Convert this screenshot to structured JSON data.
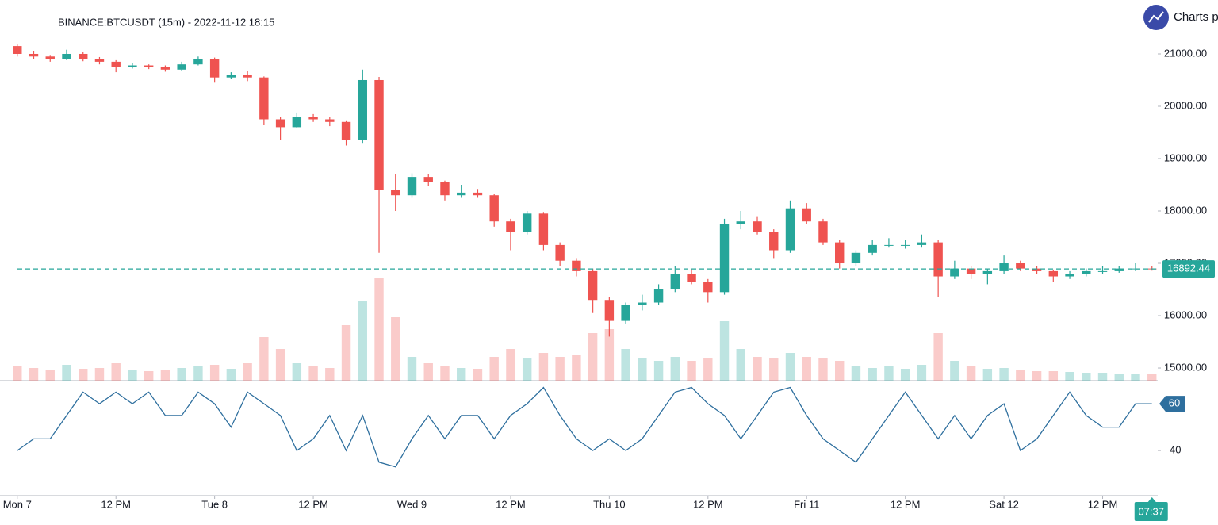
{
  "chart_data": {
    "type": "candlestick",
    "title": "BINANCE:BTCUSDT (15m) - 2022-11-12 18:15",
    "brand": "Charts p",
    "countdown": "07:37",
    "up_color": "#26a69a",
    "down_color": "#ef5350",
    "x": [
      0,
      2,
      4,
      6,
      8,
      10,
      12,
      14,
      16,
      18,
      20,
      22,
      24,
      26,
      28,
      30,
      32,
      34,
      36,
      38,
      40,
      42,
      44,
      46,
      48,
      50,
      52,
      54,
      56,
      58,
      60,
      62,
      64,
      66,
      68,
      70,
      72,
      74,
      76,
      78,
      80,
      82,
      84,
      86,
      88,
      90,
      92,
      94,
      96,
      98,
      100,
      102,
      104,
      106,
      108,
      110,
      112,
      114,
      116,
      118,
      120,
      122,
      124,
      126,
      128,
      130,
      132,
      134,
      136,
      138
    ],
    "open": [
      21150,
      21000,
      20950,
      20900,
      21000,
      20900,
      20850,
      20750,
      20780,
      20750,
      20700,
      20800,
      20900,
      20550,
      20600,
      20550,
      19750,
      19600,
      19800,
      19750,
      19700,
      19350,
      20500,
      18400,
      18300,
      18650,
      18550,
      18300,
      18350,
      18300,
      17800,
      17600,
      17950,
      17350,
      17050,
      16850,
      16300,
      15900,
      16200,
      16250,
      16500,
      16800,
      16650,
      16450,
      17750,
      17800,
      17600,
      17250,
      18050,
      17800,
      17400,
      17000,
      17200,
      17350,
      17350,
      17350,
      17400,
      16750,
      16900,
      16800,
      16850,
      17000,
      16900,
      16850,
      16750,
      16800,
      16850,
      16850,
      16900,
      16900
    ],
    "high": [
      21180,
      21060,
      20980,
      21080,
      21030,
      20940,
      20880,
      20820,
      20800,
      20780,
      20850,
      20950,
      20930,
      20650,
      20680,
      20570,
      19800,
      19880,
      19850,
      19790,
      19730,
      20700,
      20560,
      18700,
      18720,
      18700,
      18580,
      18500,
      18420,
      18330,
      17850,
      18000,
      17980,
      17400,
      17100,
      16900,
      16350,
      16250,
      16400,
      16600,
      16950,
      16900,
      16700,
      17850,
      18000,
      17900,
      17650,
      18200,
      18150,
      17850,
      17450,
      17250,
      17450,
      17480,
      17450,
      17550,
      17450,
      17050,
      16950,
      16900,
      17150,
      17050,
      16950,
      16880,
      16850,
      16900,
      16950,
      16950,
      17000,
      16950
    ],
    "low": [
      20950,
      20900,
      20850,
      20880,
      20860,
      20800,
      20650,
      20720,
      20710,
      20660,
      20680,
      20780,
      20450,
      20520,
      20480,
      19650,
      19350,
      19580,
      19700,
      19620,
      19250,
      19300,
      17200,
      18000,
      18250,
      18480,
      18200,
      18250,
      18250,
      17700,
      17250,
      17550,
      17250,
      16950,
      16750,
      16050,
      15600,
      15850,
      16100,
      16200,
      16450,
      16600,
      16250,
      16400,
      17650,
      17550,
      17100,
      17200,
      17750,
      17350,
      16900,
      16950,
      17150,
      17300,
      17280,
      17300,
      16350,
      16700,
      16700,
      16600,
      16800,
      16850,
      16800,
      16650,
      16700,
      16750,
      16800,
      16820,
      16850,
      16860
    ],
    "close": [
      21000,
      20950,
      20900,
      21000,
      20900,
      20850,
      20750,
      20780,
      20750,
      20700,
      20800,
      20900,
      20550,
      20600,
      20550,
      19750,
      19600,
      19800,
      19750,
      19700,
      19350,
      20500,
      18400,
      18300,
      18650,
      18550,
      18300,
      18350,
      18300,
      17800,
      17600,
      17950,
      17350,
      17050,
      16850,
      16300,
      15900,
      16200,
      16250,
      16500,
      16800,
      16650,
      16450,
      17750,
      17800,
      17600,
      17250,
      18050,
      17800,
      17400,
      17000,
      17200,
      17350,
      17350,
      17350,
      17400,
      16750,
      16900,
      16800,
      16850,
      17000,
      16900,
      16850,
      16750,
      16800,
      16850,
      16850,
      16900,
      16900,
      16892.44
    ],
    "volume": [
      18,
      16,
      14,
      20,
      15,
      16,
      22,
      14,
      12,
      14,
      16,
      18,
      20,
      15,
      22,
      55,
      40,
      22,
      18,
      16,
      70,
      100,
      130,
      80,
      30,
      22,
      18,
      16,
      15,
      30,
      40,
      28,
      35,
      30,
      32,
      60,
      65,
      40,
      28,
      25,
      30,
      25,
      28,
      75,
      40,
      30,
      28,
      35,
      30,
      28,
      25,
      18,
      16,
      18,
      15,
      20,
      60,
      25,
      18,
      15,
      16,
      14,
      12,
      12,
      11,
      10,
      10,
      9,
      9,
      8
    ],
    "xlim": [
      -2.1,
      138.7
    ],
    "xticks": [
      {
        "value": 0,
        "label": "Mon 7"
      },
      {
        "value": 12,
        "label": "12 PM"
      },
      {
        "value": 24,
        "label": "Tue 8"
      },
      {
        "value": 36,
        "label": "12 PM"
      },
      {
        "value": 48,
        "label": "Wed 9"
      },
      {
        "value": 60,
        "label": "12 PM"
      },
      {
        "value": 72,
        "label": "Thu 10"
      },
      {
        "value": 84,
        "label": "12 PM"
      },
      {
        "value": 96,
        "label": "Fri 11"
      },
      {
        "value": 108,
        "label": "12 PM"
      },
      {
        "value": 120,
        "label": "Sat 12"
      },
      {
        "value": 132,
        "label": "12 PM"
      }
    ],
    "ylim": [
      14758,
      22030
    ],
    "yticks": [
      {
        "value": 15000,
        "label": "15000.00"
      },
      {
        "value": 16000,
        "label": "16000.00"
      },
      {
        "value": 17000,
        "label": "17000.00"
      },
      {
        "value": 18000,
        "label": "18000.00"
      },
      {
        "value": 19000,
        "label": "19000.00"
      },
      {
        "value": 20000,
        "label": "20000.00"
      },
      {
        "value": 21000,
        "label": "21000.00"
      }
    ],
    "indicator": {
      "color": "#2e6f9e",
      "ylim": [
        20.7,
        69.2
      ],
      "yticks": [
        40
      ],
      "values": [
        40,
        45,
        45,
        55,
        65,
        60,
        65,
        60,
        65,
        55,
        55,
        65,
        60,
        50,
        65,
        60,
        55,
        40,
        45,
        55,
        40,
        55,
        35,
        33,
        45,
        55,
        45,
        55,
        55,
        45,
        55,
        60,
        67,
        55,
        45,
        40,
        45,
        40,
        45,
        55,
        65,
        67,
        60,
        55,
        45,
        55,
        65,
        67,
        55,
        45,
        40,
        35,
        45,
        55,
        65,
        55,
        45,
        55,
        45,
        55,
        60,
        40,
        45,
        55,
        65,
        55,
        50,
        50,
        60,
        60
      ]
    }
  }
}
